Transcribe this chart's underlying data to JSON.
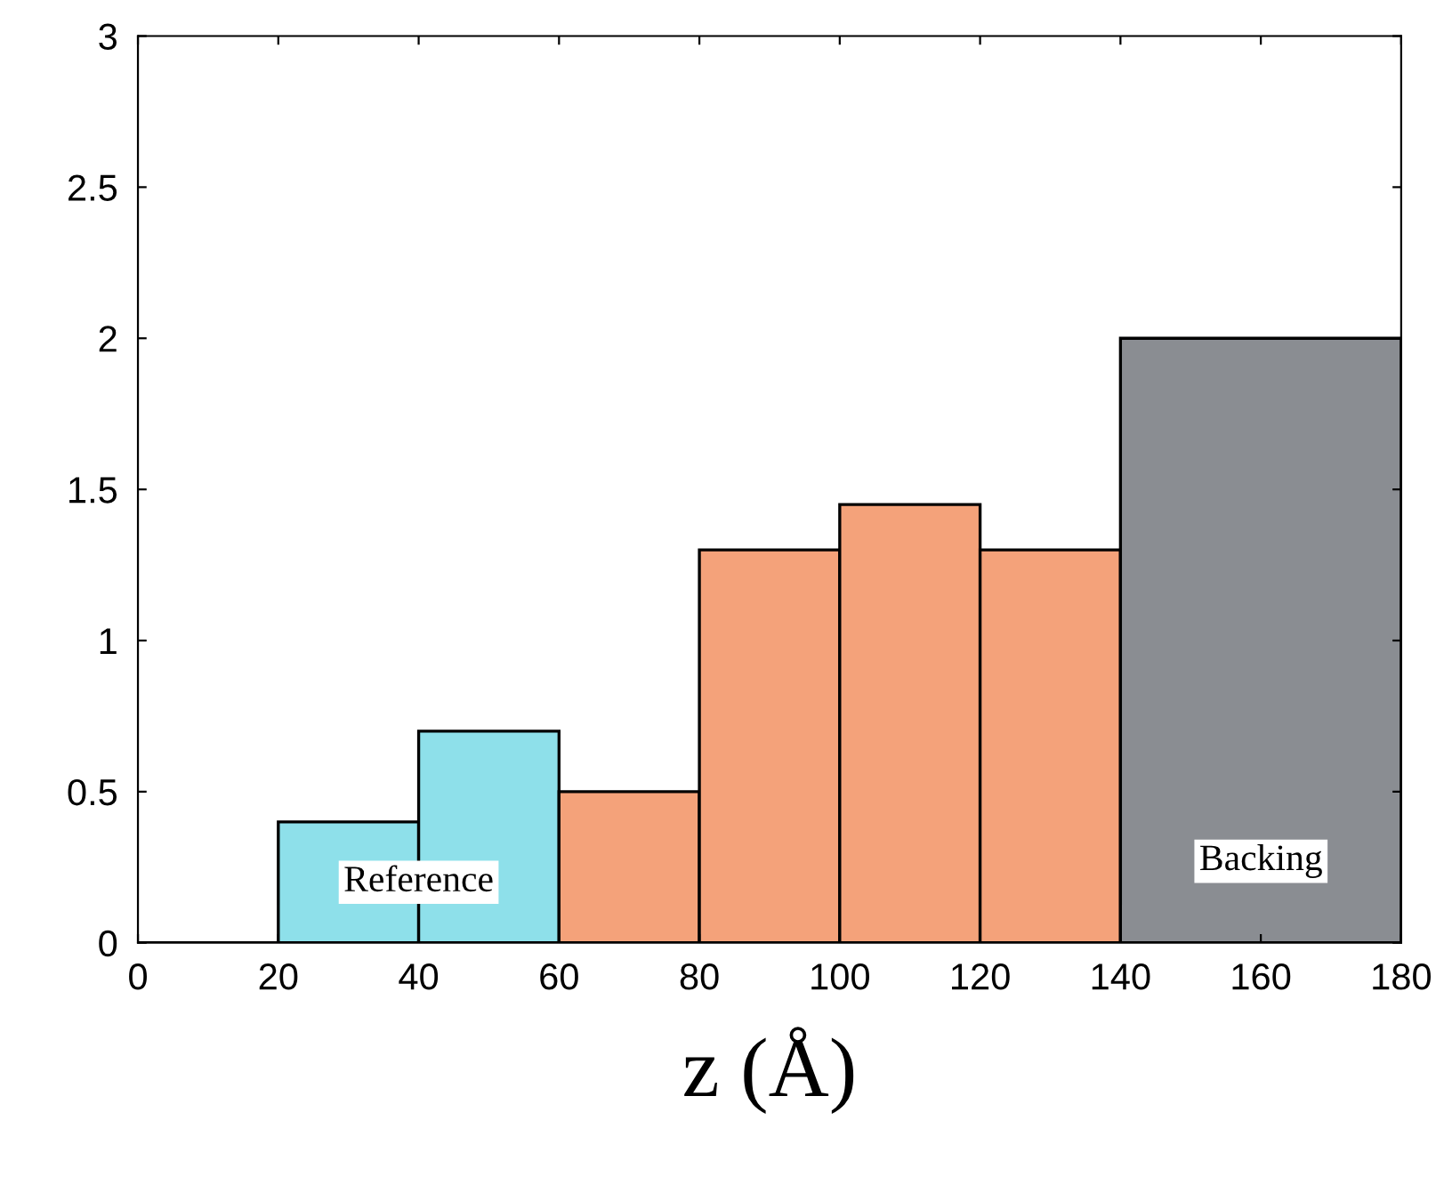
{
  "chart_data": {
    "type": "histogram",
    "xlabel": "z (Å)",
    "bins": [
      0,
      20,
      40,
      60,
      80,
      100,
      120,
      140,
      180
    ],
    "values": [
      0,
      0.4,
      0.7,
      0.5,
      1.3,
      1.45,
      1.3,
      2.0
    ],
    "colors": [
      "#000000",
      "#8ee0ea",
      "#8ee0ea",
      "#f4a27a",
      "#f4a27a",
      "#f4a27a",
      "#f4a27a",
      "#8a8d92"
    ],
    "xlim": [
      0,
      180
    ],
    "xticks": [
      0,
      20,
      40,
      60,
      80,
      100,
      120,
      140,
      160,
      180
    ],
    "ylim": [
      0,
      3
    ],
    "yticks": [
      0,
      0.5,
      1,
      1.5,
      2,
      2.5,
      3
    ],
    "annotations": [
      {
        "text": "Reference",
        "x": 40,
        "y": 0.2
      },
      "Backing"
    ],
    "grid": false
  }
}
